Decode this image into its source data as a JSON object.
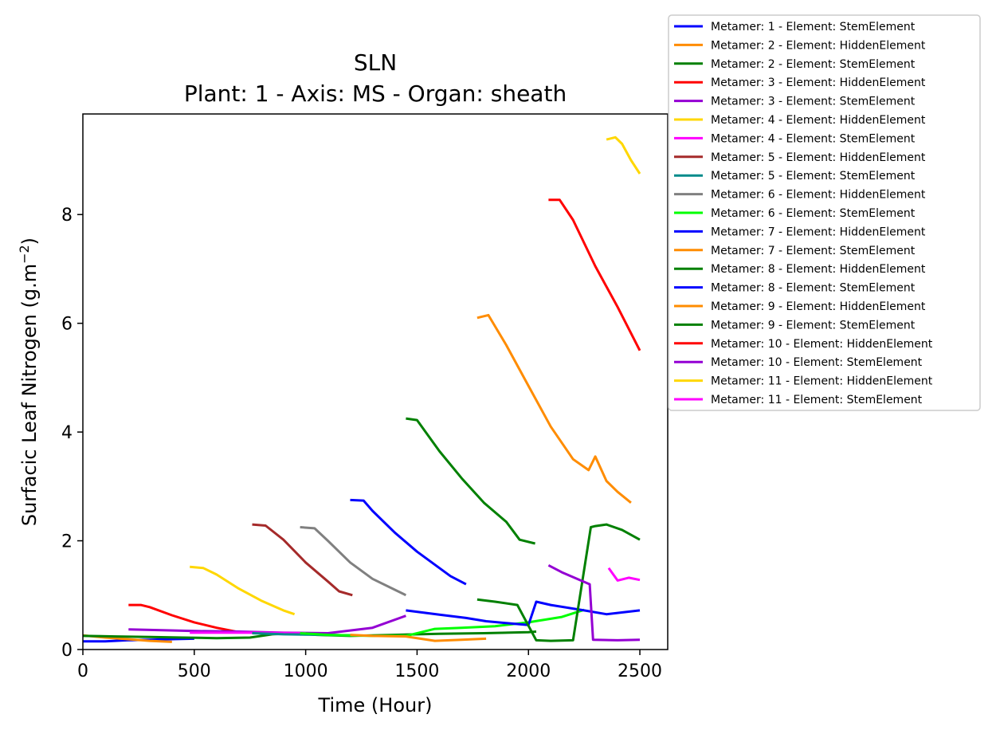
{
  "chart_data": {
    "type": "line",
    "title": "SLN",
    "subtitle": "Plant: 1 - Axis: MS - Organ: sheath",
    "xlabel": "Time (Hour)",
    "ylabel": "Surfacic Leaf Nitrogen (g.m",
    "ylabel_sup": "−2",
    "ylabel_end": ")",
    "xlim": [
      0,
      2625
    ],
    "ylim": [
      0,
      9.85
    ],
    "xticks": [
      0,
      500,
      1000,
      1500,
      2000,
      2500
    ],
    "yticks": [
      0,
      2,
      4,
      6,
      8
    ],
    "legend_position": "outside-top-right",
    "grid": false,
    "series": [
      {
        "name": "Metamer: 1 - Element: StemElement",
        "color": "#0000ff",
        "x": [
          0,
          100,
          200,
          300,
          400,
          500
        ],
        "y": [
          0.15,
          0.15,
          0.17,
          0.18,
          0.19,
          0.2
        ]
      },
      {
        "name": "Metamer: 2 - Element: HiddenElement",
        "color": "#ff8c00",
        "x": [
          0,
          100,
          200,
          300,
          400
        ],
        "y": [
          0.26,
          0.22,
          0.19,
          0.16,
          0.14
        ]
      },
      {
        "name": "Metamer: 2 - Element: StemElement",
        "color": "#008000",
        "x": [
          0,
          150,
          300,
          450,
          600,
          750,
          850,
          950,
          1050,
          1200,
          1400,
          1600,
          1800,
          2000,
          2035
        ],
        "y": [
          0.25,
          0.24,
          0.23,
          0.22,
          0.21,
          0.22,
          0.28,
          0.3,
          0.27,
          0.25,
          0.27,
          0.29,
          0.3,
          0.32,
          0.33
        ]
      },
      {
        "name": "Metamer: 3 - Element: HiddenElement",
        "color": "#ff0000",
        "x": [
          205,
          260,
          300,
          400,
          500,
          600,
          700
        ],
        "y": [
          0.82,
          0.82,
          0.78,
          0.63,
          0.5,
          0.4,
          0.32
        ]
      },
      {
        "name": "Metamer: 3 - Element: StemElement",
        "color": "#9400d3",
        "x": [
          205,
          300,
          500,
          700,
          900,
          1100,
          1300,
          1450
        ],
        "y": [
          0.37,
          0.36,
          0.34,
          0.33,
          0.31,
          0.3,
          0.4,
          0.62
        ]
      },
      {
        "name": "Metamer: 4 - Element: HiddenElement",
        "color": "#ffd700",
        "x": [
          480,
          540,
          600,
          700,
          800,
          900,
          950
        ],
        "y": [
          1.52,
          1.5,
          1.38,
          1.12,
          0.9,
          0.72,
          0.65
        ]
      },
      {
        "name": "Metamer: 4 - Element: StemElement",
        "color": "#ff00ff",
        "x": [
          480,
          600,
          800,
          1000
        ],
        "y": [
          0.31,
          0.31,
          0.31,
          0.3
        ]
      },
      {
        "name": "Metamer: 5 - Element: HiddenElement",
        "color": "#a52a2a",
        "x": [
          760,
          820,
          900,
          1000,
          1100,
          1150,
          1210
        ],
        "y": [
          2.3,
          2.28,
          2.02,
          1.6,
          1.25,
          1.07,
          1.0
        ]
      },
      {
        "name": "Metamer: 5 - Element: StemElement",
        "color": "#008b8b",
        "x": [
          760,
          900,
          1100,
          1210
        ],
        "y": [
          0.3,
          0.28,
          0.27,
          0.26
        ]
      },
      {
        "name": "Metamer: 6 - Element: HiddenElement",
        "color": "#808080",
        "x": [
          975,
          1040,
          1100,
          1200,
          1300,
          1400,
          1450
        ],
        "y": [
          2.25,
          2.23,
          2.0,
          1.6,
          1.3,
          1.1,
          1.0
        ]
      },
      {
        "name": "Metamer: 6 - Element: StemElement",
        "color": "#00ff00",
        "x": [
          975,
          1100,
          1300,
          1450,
          1580,
          1700,
          1850,
          2000,
          2150,
          2250
        ],
        "y": [
          0.3,
          0.27,
          0.25,
          0.25,
          0.38,
          0.4,
          0.43,
          0.5,
          0.6,
          0.73
        ]
      },
      {
        "name": "Metamer: 7 - Element: HiddenElement",
        "color": "#0000ff",
        "x": [
          1200,
          1260,
          1300,
          1400,
          1500,
          1600,
          1650,
          1720
        ],
        "y": [
          2.75,
          2.74,
          2.55,
          2.15,
          1.8,
          1.5,
          1.35,
          1.2
        ]
      },
      {
        "name": "Metamer: 7 - Element: StemElement",
        "color": "#ff8c00",
        "x": [
          1200,
          1300,
          1450,
          1580,
          1700,
          1810
        ],
        "y": [
          0.27,
          0.25,
          0.24,
          0.16,
          0.18,
          0.2
        ]
      },
      {
        "name": "Metamer: 8 - Element: HiddenElement",
        "color": "#008000",
        "x": [
          1450,
          1500,
          1600,
          1700,
          1800,
          1900,
          1960,
          2030
        ],
        "y": [
          4.25,
          4.22,
          3.65,
          3.15,
          2.7,
          2.35,
          2.02,
          1.95
        ]
      },
      {
        "name": "Metamer: 8 - Element: StemElement",
        "color": "#0000ff",
        "x": [
          1450,
          1600,
          1720,
          1810,
          2000,
          2035,
          2100,
          2250,
          2350,
          2500
        ],
        "y": [
          0.72,
          0.64,
          0.58,
          0.52,
          0.45,
          0.88,
          0.82,
          0.72,
          0.65,
          0.72
        ]
      },
      {
        "name": "Metamer: 9 - Element: HiddenElement",
        "color": "#ff8c00",
        "x": [
          1770,
          1820,
          1900,
          2000,
          2100,
          2200,
          2270,
          2300,
          2350,
          2400,
          2460
        ],
        "y": [
          6.1,
          6.15,
          5.6,
          4.85,
          4.1,
          3.5,
          3.3,
          3.55,
          3.1,
          2.9,
          2.7
        ]
      },
      {
        "name": "Metamer: 9 - Element: StemElement",
        "color": "#008000",
        "x": [
          1770,
          1850,
          1950,
          2035,
          2100,
          2200,
          2280,
          2300,
          2350,
          2420,
          2500
        ],
        "y": [
          0.92,
          0.88,
          0.82,
          0.17,
          0.16,
          0.17,
          2.25,
          2.27,
          2.3,
          2.2,
          2.02
        ]
      },
      {
        "name": "Metamer: 10 - Element: HiddenElement",
        "color": "#ff0000",
        "x": [
          2090,
          2140,
          2200,
          2300,
          2400,
          2500
        ],
        "y": [
          8.27,
          8.27,
          7.9,
          7.05,
          6.3,
          5.5
        ]
      },
      {
        "name": "Metamer: 10 - Element: StemElement",
        "color": "#9400d3",
        "x": [
          2090,
          2150,
          2275,
          2290,
          2400,
          2500
        ],
        "y": [
          1.55,
          1.42,
          1.2,
          0.18,
          0.17,
          0.18
        ]
      },
      {
        "name": "Metamer: 11 - Element: HiddenElement",
        "color": "#ffd700",
        "x": [
          2350,
          2390,
          2420,
          2460,
          2500
        ],
        "y": [
          9.38,
          9.42,
          9.3,
          9.0,
          8.75
        ]
      },
      {
        "name": "Metamer: 11 - Element: StemElement",
        "color": "#ff00ff",
        "x": [
          2360,
          2400,
          2450,
          2500
        ],
        "y": [
          1.5,
          1.27,
          1.32,
          1.28
        ]
      }
    ]
  }
}
